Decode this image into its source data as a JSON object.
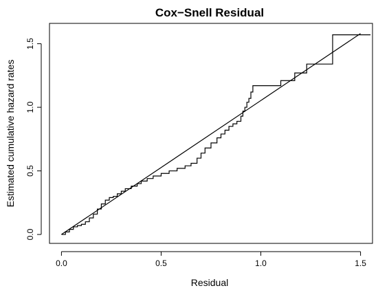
{
  "chart_data": {
    "type": "line",
    "title": "Cox−Snell Residual",
    "xlabel": "Residual",
    "ylabel": "Estimated cumulative hazard rates",
    "xlim": [
      -0.06,
      1.56
    ],
    "ylim": [
      -0.07,
      1.66
    ],
    "xticks": [
      0.0,
      0.5,
      1.0,
      1.5
    ],
    "xtick_labels": [
      "0.0",
      "0.5",
      "1.0",
      "1.5"
    ],
    "yticks": [
      0.0,
      0.5,
      1.0,
      1.5
    ],
    "ytick_labels": [
      "0.0",
      "0.5",
      "1.0",
      "1.5"
    ],
    "grid": false,
    "series": [
      {
        "style": "step",
        "x": [
          0.0,
          0.02,
          0.04,
          0.06,
          0.08,
          0.1,
          0.12,
          0.14,
          0.16,
          0.18,
          0.2,
          0.22,
          0.24,
          0.26,
          0.28,
          0.3,
          0.32,
          0.35,
          0.38,
          0.4,
          0.43,
          0.46,
          0.5,
          0.54,
          0.58,
          0.62,
          0.65,
          0.68,
          0.7,
          0.72,
          0.75,
          0.78,
          0.8,
          0.82,
          0.84,
          0.86,
          0.88,
          0.9,
          0.91,
          0.92,
          0.93,
          0.94,
          0.95,
          0.96,
          1.1,
          1.17,
          1.23,
          1.36,
          1.55
        ],
        "y": [
          0.0,
          0.02,
          0.04,
          0.06,
          0.07,
          0.08,
          0.1,
          0.13,
          0.16,
          0.2,
          0.24,
          0.27,
          0.29,
          0.3,
          0.32,
          0.34,
          0.36,
          0.38,
          0.4,
          0.42,
          0.44,
          0.46,
          0.48,
          0.5,
          0.52,
          0.54,
          0.56,
          0.6,
          0.64,
          0.68,
          0.72,
          0.76,
          0.79,
          0.82,
          0.85,
          0.87,
          0.89,
          0.93,
          0.97,
          1.0,
          1.04,
          1.07,
          1.12,
          1.17,
          1.21,
          1.27,
          1.34,
          1.57,
          1.57
        ]
      },
      {
        "style": "reference-line",
        "x": [
          0.0,
          1.5
        ],
        "y": [
          0.0,
          1.58
        ]
      }
    ]
  }
}
